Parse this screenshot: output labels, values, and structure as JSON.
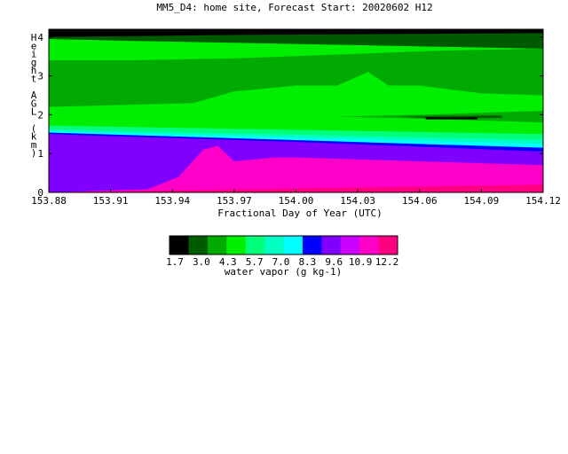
{
  "chart_data": {
    "type": "heatmap",
    "title": "MM5_D4: home site,  Forecast Start: 20020602 H12",
    "xlabel": "Fractional Day of Year (UTC)",
    "ylabel": "Height AGL (km)",
    "xlim": [
      153.88,
      154.12
    ],
    "ylim": [
      0,
      4.2
    ],
    "x_ticks": [
      "153.88",
      "153.91",
      "153.94",
      "153.97",
      "154.00",
      "154.03",
      "154.06",
      "154.09",
      "154.12"
    ],
    "y_ticks": [
      "0",
      "1",
      "2",
      "3",
      "4"
    ],
    "colorbar": {
      "label": "water vapor (g kg-1)",
      "tick_labels": [
        "1.7",
        "3.0",
        "4.3",
        "5.7",
        "7.0",
        "8.3",
        "9.6",
        "10.9",
        "12.2"
      ],
      "colors": [
        "#000000",
        "#005a00",
        "#00aa00",
        "#00ee00",
        "#00ff7a",
        "#00ffc0",
        "#00ffff",
        "#0000ff",
        "#8000ff",
        "#cc00ff",
        "#ff00c8",
        "#ff0080"
      ]
    },
    "layers": [
      {
        "level": "8.3-9.6",
        "top": [
          [
            153.88,
            1.5
          ],
          [
            154.0,
            1.3
          ],
          [
            154.12,
            1.05
          ]
        ]
      },
      {
        "level": "9.6-10.9",
        "top": [
          [
            153.88,
            0
          ],
          [
            153.928,
            0.08
          ],
          [
            153.943,
            0.4
          ],
          [
            153.955,
            1.1
          ],
          [
            153.962,
            1.2
          ],
          [
            153.97,
            0.8
          ],
          [
            153.99,
            0.9
          ],
          [
            154.0,
            0.9
          ],
          [
            154.12,
            0.7
          ]
        ]
      },
      {
        "level": "10.9-12.2",
        "top": [
          [
            153.88,
            0
          ],
          [
            154.12,
            0.2
          ]
        ]
      }
    ]
  }
}
